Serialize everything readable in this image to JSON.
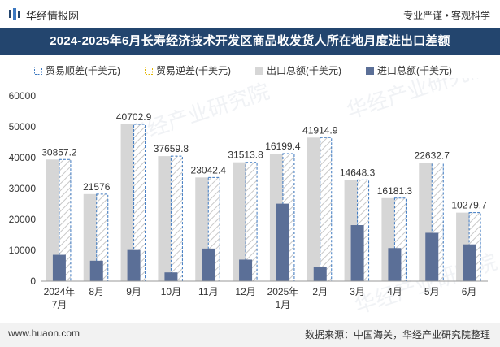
{
  "header": {
    "brand": "华经情报网",
    "tags": "专业严谨 • 客观科学"
  },
  "title": "2024-2025年6月长寿经济技术开发区商品收发货人所在地月度进出口差额",
  "colors": {
    "surplus": "#3c78c0",
    "deficit": "#e3b600",
    "export": "#d6d6d6",
    "import": "#5b6f97",
    "titlebar": "#23456e"
  },
  "legend": [
    {
      "key": "surplus",
      "label": "贸易顺差(千美元)"
    },
    {
      "key": "deficit",
      "label": "贸易逆差(千美元)"
    },
    {
      "key": "export",
      "label": "出口总额(千美元)"
    },
    {
      "key": "import",
      "label": "进口总额(千美元)"
    }
  ],
  "chart_data": {
    "type": "bar",
    "title": "2024-2025年6月长寿经济技术开发区商品收发货人所在地月度进出口差额",
    "categories": [
      "2024年\n7月",
      "8月",
      "9月",
      "10月",
      "11月",
      "12月",
      "2025年\n1月",
      "2月",
      "3月",
      "4月",
      "5月",
      "6月"
    ],
    "series": [
      {
        "name": "出口总额(千美元)",
        "values": [
          39400,
          28200,
          50800,
          40500,
          33600,
          38500,
          41300,
          46500,
          32800,
          26900,
          38300,
          22200
        ]
      },
      {
        "name": "进口总额(千美元)",
        "values": [
          8543,
          6624,
          10097,
          2840,
          10558,
          6986,
          25101,
          4585,
          18152,
          10719,
          15667,
          11920
        ]
      },
      {
        "name": "贸易顺差(千美元)",
        "values": [
          30857.2,
          21576,
          40702.9,
          37659.8,
          23042.4,
          31513.8,
          16199.4,
          41914.9,
          14648.3,
          16181.3,
          22632.7,
          10279.7
        ]
      }
    ],
    "data_labels": [
      "30857.2",
      "21576",
      "40702.9",
      "37659.8",
      "23042.4",
      "31513.8",
      "16199.4",
      "41914.9",
      "14648.3",
      "16181.3",
      "22632.7",
      "10279.7"
    ],
    "ylim": [
      0,
      60000
    ],
    "yticks": [
      0,
      10000,
      20000,
      30000,
      40000,
      50000,
      60000
    ],
    "grid": false,
    "legend_position": "top"
  },
  "watermark": "华经产业研究院",
  "footer": {
    "website": "www.huaon.com",
    "source": "数据来源：中国海关，华经产业研究院整理"
  }
}
